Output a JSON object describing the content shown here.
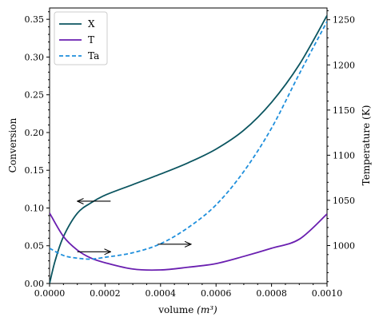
{
  "chart_data": {
    "type": "line",
    "xlabel": "volume",
    "xlabel_unit": "(m³)",
    "ylabel_left": "Conversion",
    "ylabel_right": "Temperature (K)",
    "xlim": [
      0,
      0.001
    ],
    "ylim_left": [
      0,
      0.365
    ],
    "ylim_right": [
      958,
      1263
    ],
    "x_ticks": [
      0,
      0.0002,
      0.0004,
      0.0006,
      0.0008,
      0.001
    ],
    "x_tick_labels": [
      "0.0000",
      "0.0002",
      "0.0004",
      "0.0006",
      "0.0008",
      "0.0010"
    ],
    "y_left_ticks": [
      0,
      0.05,
      0.1,
      0.15,
      0.2,
      0.25,
      0.3,
      0.35
    ],
    "y_left_tick_labels": [
      "0.00",
      "0.05",
      "0.10",
      "0.15",
      "0.20",
      "0.25",
      "0.30",
      "0.35"
    ],
    "y_right_ticks": [
      1000,
      1050,
      1100,
      1150,
      1200,
      1250
    ],
    "y_right_tick_labels": [
      "1000",
      "1050",
      "1100",
      "1150",
      "1200",
      "1250"
    ],
    "legend_position": "top-left",
    "grid": false,
    "series": [
      {
        "name": "X",
        "axis": "left",
        "color": "#0b5560",
        "style": "solid",
        "x": [
          0,
          2e-05,
          5e-05,
          0.0001,
          0.00015,
          0.0002,
          0.0003,
          0.0004,
          0.0005,
          0.0006,
          0.0007,
          0.0008,
          0.0009,
          0.001
        ],
        "y": [
          0.0,
          0.03,
          0.062,
          0.093,
          0.107,
          0.117,
          0.131,
          0.145,
          0.16,
          0.178,
          0.203,
          0.24,
          0.29,
          0.355
        ]
      },
      {
        "name": "T",
        "axis": "right",
        "color": "#6a1fb0",
        "style": "solid",
        "x": [
          0,
          5e-05,
          0.0001,
          0.00015,
          0.0002,
          0.0003,
          0.0004,
          0.0005,
          0.0006,
          0.0007,
          0.0008,
          0.0009,
          0.001
        ],
        "y": [
          1036,
          1010,
          995,
          986,
          981,
          974,
          973,
          976,
          980,
          988,
          997,
          1007,
          1035
        ]
      },
      {
        "name": "Ta",
        "axis": "right",
        "color": "#1f8fdc",
        "style": "dashed",
        "x": [
          0,
          5e-05,
          0.0001,
          0.00015,
          0.0002,
          0.0003,
          0.0004,
          0.0005,
          0.0006,
          0.0007,
          0.0008,
          0.0009,
          0.001
        ],
        "y": [
          997,
          989,
          986,
          985,
          987,
          992,
          1002,
          1020,
          1045,
          1082,
          1130,
          1190,
          1248
        ]
      }
    ],
    "arrows": [
      {
        "from": [
          0.00022,
          0.109
        ],
        "to": [
          0.0001,
          0.109
        ],
        "axis": "left"
      },
      {
        "from": [
          0.0001,
          0.042
        ],
        "to": [
          0.00022,
          0.042
        ],
        "axis": "left"
      },
      {
        "from": [
          0.00039,
          0.052
        ],
        "to": [
          0.00051,
          0.052
        ],
        "axis": "left"
      }
    ]
  }
}
